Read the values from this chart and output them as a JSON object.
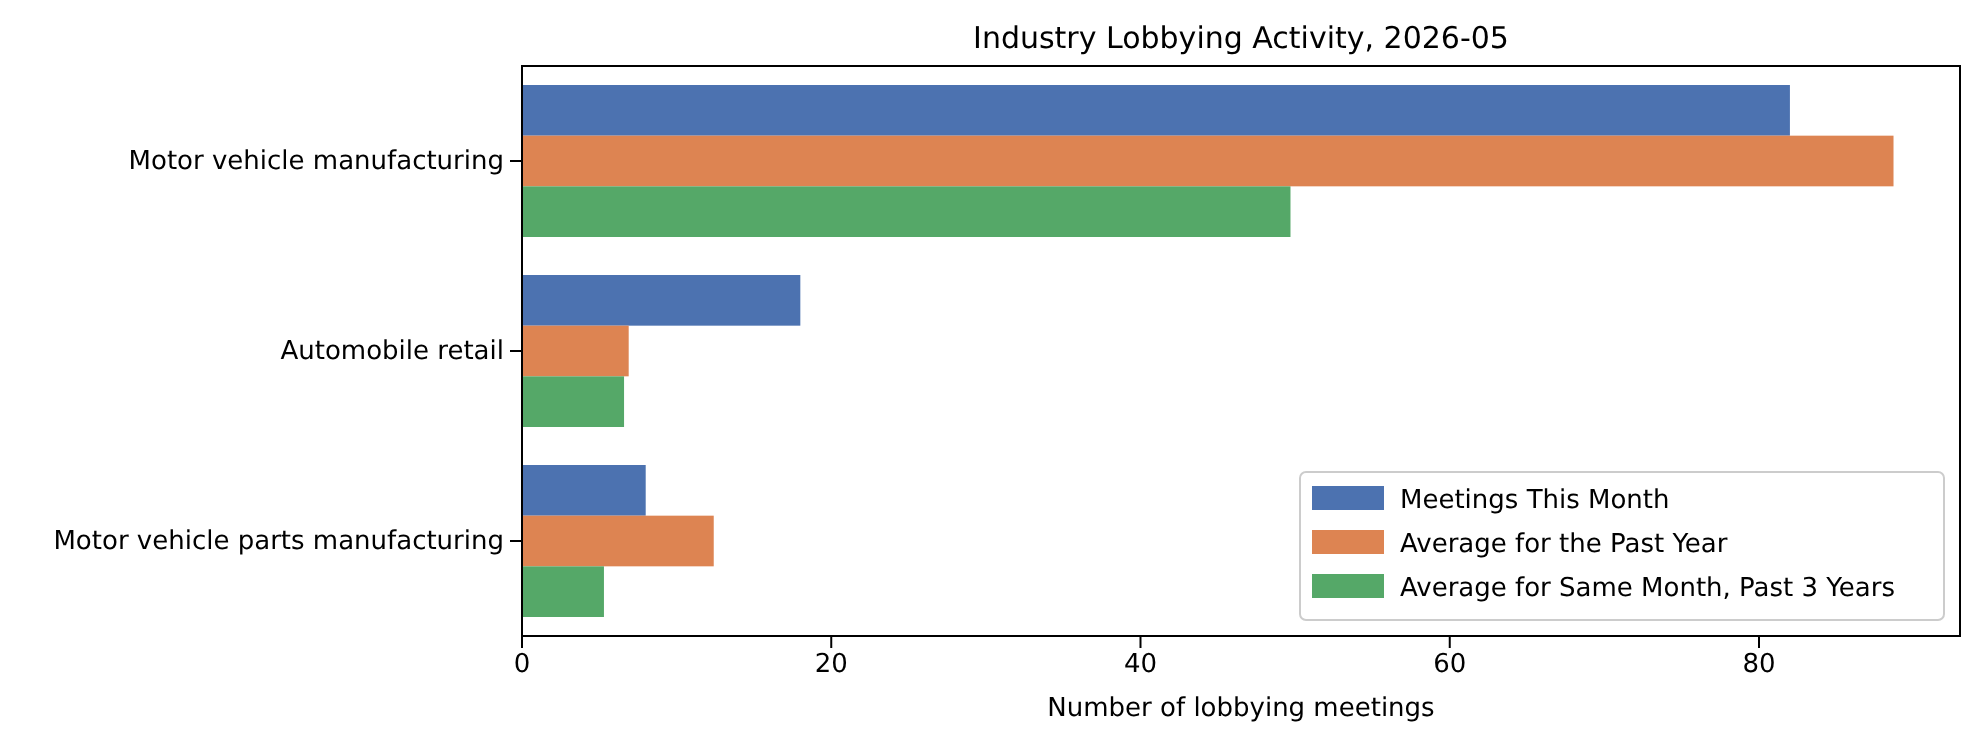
{
  "chart_data": {
    "type": "bar",
    "orientation": "horizontal",
    "title": "Industry Lobbying Activity, 2026-05",
    "xlabel": "Number of lobbying meetings",
    "categories": [
      "Motor vehicle manufacturing",
      "Automobile retail",
      "Motor vehicle parts manufacturing"
    ],
    "series": [
      {
        "name": "Meetings This Month",
        "color": "#4c72b0",
        "values": [
          82,
          18,
          8
        ]
      },
      {
        "name": "Average for the Past Year",
        "color": "#dd8452",
        "values": [
          88.7,
          6.9,
          12.4
        ]
      },
      {
        "name": "Average for Same Month, Past 3 Years",
        "color": "#55a868",
        "values": [
          49.7,
          6.6,
          5.3
        ]
      }
    ],
    "xlim": [
      0,
      93
    ],
    "xticks": [
      0,
      20,
      40,
      60,
      80
    ],
    "legend": "bottom right",
    "grid": false
  }
}
